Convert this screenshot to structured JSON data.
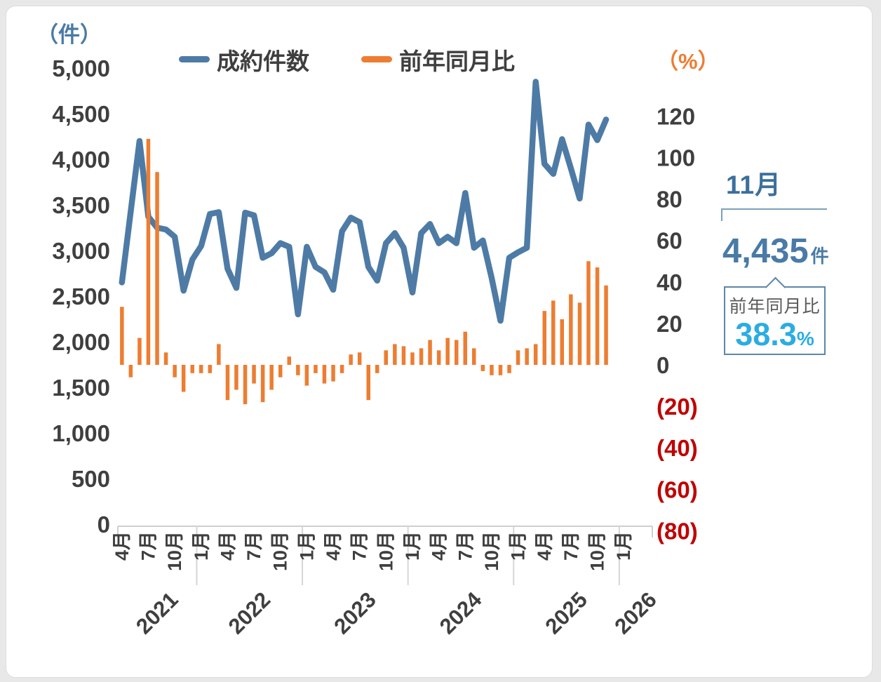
{
  "page": {
    "background": "#e8e8e8",
    "card_background": "#ffffff"
  },
  "header": {
    "left_axis_unit": "（件）",
    "right_axis_unit": "（%）"
  },
  "legend": {
    "items": [
      {
        "label": "成約件数",
        "color": "#4e7ba6",
        "type": "line"
      },
      {
        "label": "前年同月比",
        "color": "#ed7d31",
        "type": "bar"
      }
    ]
  },
  "annotation": {
    "month": "11月",
    "value": "4,435",
    "value_unit": "件",
    "box_label": "前年同月比",
    "box_value": "38.3",
    "box_unit": "%"
  },
  "chart_data": {
    "type": "combo",
    "title": "",
    "left_axis": {
      "unit": "（件）",
      "min": 0,
      "max": 5000,
      "tick_step": 500,
      "tick_labels": [
        "5,000",
        "4,500",
        "4,000",
        "3,500",
        "3,000",
        "2,500",
        "2,000",
        "1,500",
        "1,000",
        "500",
        "0"
      ],
      "color": "#3f3f3f",
      "unit_color": "#4a7aa6"
    },
    "right_axis": {
      "unit": "（%）",
      "min": -80,
      "max": 140,
      "tick_step": 20,
      "tick_labels": [
        "120",
        "100",
        "80",
        "60",
        "40",
        "20",
        "0",
        "(20)",
        "(40)",
        "(60)",
        "(80)"
      ],
      "tick_values": [
        120,
        100,
        80,
        60,
        40,
        20,
        0,
        -20,
        -40,
        -60,
        -80
      ],
      "color": "#3f3f3f",
      "negative_color": "#c00000",
      "unit_color": "#ed7d31"
    },
    "categories": [
      "2021-04",
      "2021-05",
      "2021-06",
      "2021-07",
      "2021-08",
      "2021-09",
      "2021-10",
      "2021-11",
      "2021-12",
      "2022-01",
      "2022-02",
      "2022-03",
      "2022-04",
      "2022-05",
      "2022-06",
      "2022-07",
      "2022-08",
      "2022-09",
      "2022-10",
      "2022-11",
      "2022-12",
      "2023-01",
      "2023-02",
      "2023-03",
      "2023-04",
      "2023-05",
      "2023-06",
      "2023-07",
      "2023-08",
      "2023-09",
      "2023-10",
      "2023-11",
      "2023-12",
      "2024-01",
      "2024-02",
      "2024-03",
      "2024-04",
      "2024-05",
      "2024-06",
      "2024-07",
      "2024-08",
      "2024-09",
      "2024-10",
      "2024-11",
      "2024-12",
      "2025-01",
      "2025-02",
      "2025-03",
      "2025-04",
      "2025-05",
      "2025-06",
      "2025-07",
      "2025-08",
      "2025-09",
      "2025-10",
      "2025-11",
      "2025-12",
      "2026-01"
    ],
    "series": [
      {
        "name": "成約件数",
        "type": "line",
        "axis": "left",
        "color": "#4e7ba6",
        "values": [
          2650,
          3430,
          4200,
          3370,
          3250,
          3230,
          3150,
          2560,
          2900,
          3050,
          3400,
          3420,
          2800,
          2590,
          3415,
          3385,
          2920,
          2970,
          3080,
          3040,
          2300,
          3040,
          2820,
          2760,
          2570,
          3210,
          3360,
          3310,
          2820,
          2670,
          3080,
          3190,
          3030,
          2540,
          3190,
          3290,
          3080,
          3150,
          3080,
          3630,
          3030,
          3110,
          2700,
          2230,
          2920,
          2980,
          3030,
          4850,
          3950,
          3840,
          4220,
          3900,
          3570,
          4380,
          4210,
          4435,
          null,
          null
        ]
      },
      {
        "name": "前年同月比",
        "type": "bar",
        "axis": "right",
        "color": "#ed7d31",
        "values": [
          28,
          -6,
          13,
          109,
          93,
          6,
          -6,
          -13,
          -4,
          -4,
          -4,
          10,
          -17,
          -12,
          -19,
          -9,
          -18,
          -12,
          -6,
          4,
          -5,
          -10,
          -4,
          -9,
          -8,
          -4,
          5,
          6,
          -17,
          -4,
          7,
          10,
          9,
          6,
          8,
          12,
          7,
          13,
          12,
          16,
          8,
          -3,
          -5,
          -5,
          -4,
          7,
          8,
          10,
          26,
          31,
          22,
          34,
          30,
          50,
          47,
          38.3,
          null,
          null
        ]
      }
    ],
    "x_month_ticks": [
      {
        "index": 0,
        "label": "4月"
      },
      {
        "index": 3,
        "label": "7月"
      },
      {
        "index": 6,
        "label": "10月"
      },
      {
        "index": 9,
        "label": "1月"
      },
      {
        "index": 12,
        "label": "4月"
      },
      {
        "index": 15,
        "label": "7月"
      },
      {
        "index": 18,
        "label": "10月"
      },
      {
        "index": 21,
        "label": "1月"
      },
      {
        "index": 24,
        "label": "4月"
      },
      {
        "index": 27,
        "label": "7月"
      },
      {
        "index": 30,
        "label": "10月"
      },
      {
        "index": 33,
        "label": "1月"
      },
      {
        "index": 36,
        "label": "4月"
      },
      {
        "index": 39,
        "label": "7月"
      },
      {
        "index": 42,
        "label": "10月"
      },
      {
        "index": 45,
        "label": "1月"
      },
      {
        "index": 48,
        "label": "4月"
      },
      {
        "index": 51,
        "label": "7月"
      },
      {
        "index": 54,
        "label": "10月"
      },
      {
        "index": 57,
        "label": "1月"
      }
    ],
    "x_year_groups": [
      {
        "label": "2021",
        "start": 0,
        "end": 8
      },
      {
        "label": "2022",
        "start": 9,
        "end": 20
      },
      {
        "label": "2023",
        "start": 21,
        "end": 32
      },
      {
        "label": "2024",
        "start": 33,
        "end": 44
      },
      {
        "label": "2025",
        "start": 45,
        "end": 56
      },
      {
        "label": "2026",
        "start": 57,
        "end": 57
      }
    ],
    "highlight": {
      "month": "11月",
      "value": 4435,
      "yoy_pct": 38.3
    },
    "layout_hints": {
      "grid": false,
      "legend_position": "top",
      "bars_in_front_of_line": true
    }
  }
}
